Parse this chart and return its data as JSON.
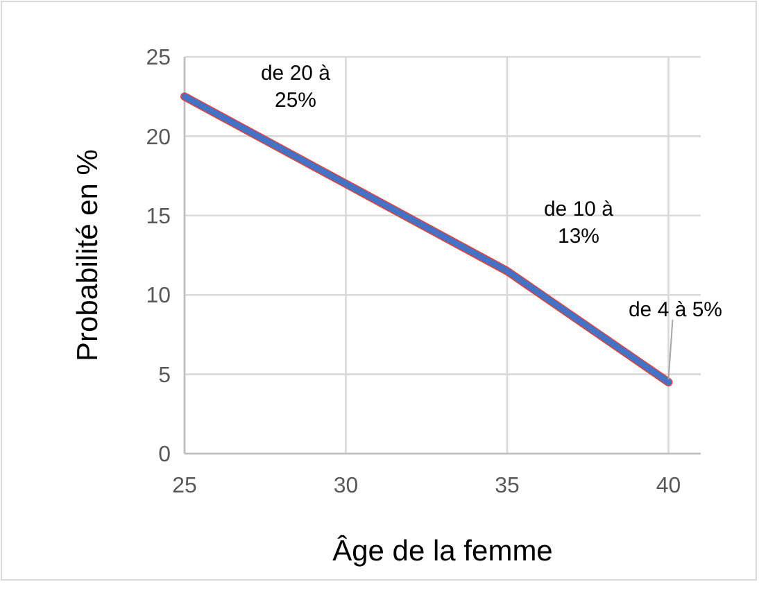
{
  "chart_data": {
    "type": "line",
    "xlabel": "Âge de la femme",
    "ylabel": "Probabilité en %",
    "x": [
      25,
      30,
      35,
      40
    ],
    "series": [
      {
        "color": "#4472c4",
        "values": [
          22.5,
          17,
          11.5,
          4.5
        ]
      }
    ],
    "xlim": [
      25,
      41
    ],
    "xticks": [
      25,
      30,
      35,
      40
    ],
    "ylim": [
      0,
      25
    ],
    "yticks": [
      0,
      5,
      10,
      15,
      20,
      25
    ],
    "grid": true,
    "marker": "none",
    "line_style": "solid",
    "annotations": [
      "de 20 à 25%",
      "de 10 à 13%",
      {
        "text": "de 4 à 5%",
        "x": 40,
        "y": 4.5
      }
    ]
  }
}
